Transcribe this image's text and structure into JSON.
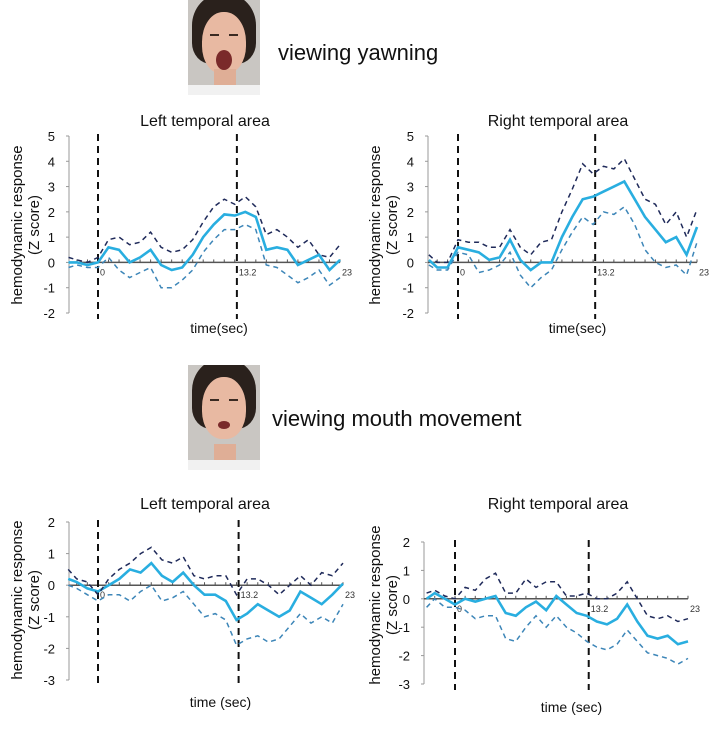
{
  "panels": [
    {
      "caption": "viewing yawning",
      "photo": "face-yawning"
    },
    {
      "caption": "viewing mouth movement",
      "photo": "face-mouth-movement"
    }
  ],
  "colors": {
    "mean": "#29aee0",
    "upper": "#1f2a5a",
    "lower": "#3d86b8",
    "event_line": "#111111"
  },
  "chart_data": [
    {
      "type": "line",
      "title": "Left temporal area",
      "ylabel": "hemodynamic response",
      "ylabel2": "(Z score)",
      "xlabel": "time(sec)",
      "ylim": [
        -2,
        5
      ],
      "yticks": [
        5,
        4,
        3,
        2,
        1,
        0,
        -1,
        -2
      ],
      "xticks": [
        0,
        13.2,
        23
      ],
      "xtick_labels": [
        "0",
        "13.2",
        "23"
      ],
      "event_lines": [
        0,
        13.2
      ],
      "x": [
        -3,
        -2,
        -1,
        0,
        1,
        2,
        3,
        4,
        5,
        6,
        7,
        8,
        9,
        10,
        11,
        12,
        13,
        14,
        15,
        16,
        17,
        18,
        19,
        20,
        21,
        22,
        23
      ],
      "series": [
        {
          "role": "mean",
          "values": [
            0,
            0,
            -0.1,
            0,
            0.6,
            0.5,
            0,
            0.2,
            0.5,
            -0.1,
            -0.3,
            -0.2,
            0.3,
            1.0,
            1.5,
            1.9,
            1.85,
            2.0,
            1.8,
            0.5,
            0.6,
            0.5,
            -0.1,
            0.1,
            0.3,
            -0.3,
            0.1
          ]
        },
        {
          "role": "upper",
          "values": [
            0.2,
            0.1,
            0,
            0.2,
            0.9,
            1.0,
            0.7,
            0.8,
            1.2,
            0.6,
            0.4,
            0.5,
            0.9,
            1.6,
            2.2,
            2.5,
            2.3,
            2.6,
            2.2,
            1.1,
            1.3,
            1.0,
            0.6,
            0.9,
            0.3,
            0.2,
            0.7
          ]
        },
        {
          "role": "lower",
          "values": [
            -0.2,
            -0.1,
            -0.2,
            -0.2,
            0.2,
            -0.3,
            -0.6,
            -0.4,
            -0.2,
            -1.0,
            -1.0,
            -0.7,
            -0.3,
            0.4,
            0.9,
            1.3,
            1.3,
            1.5,
            1.3,
            -0.1,
            -0.2,
            -0.5,
            -0.8,
            -0.6,
            -0.3,
            -0.9,
            -0.6
          ]
        }
      ]
    },
    {
      "type": "line",
      "title": "Right temporal area",
      "ylabel": "hemodynamic response",
      "ylabel2": "(Z score)",
      "xlabel": "time(sec)",
      "ylim": [
        -2,
        5
      ],
      "yticks": [
        5,
        4,
        3,
        2,
        1,
        0,
        -1,
        -2
      ],
      "xticks": [
        0,
        13.2,
        23
      ],
      "xtick_labels": [
        "0",
        "13.2",
        "23"
      ],
      "event_lines": [
        0,
        13.2
      ],
      "x": [
        -3,
        -2,
        -1,
        0,
        1,
        2,
        3,
        4,
        5,
        6,
        7,
        8,
        9,
        10,
        11,
        12,
        13,
        14,
        15,
        16,
        17,
        18,
        19,
        20,
        21,
        22,
        23
      ],
      "series": [
        {
          "role": "mean",
          "values": [
            0.1,
            -0.2,
            -0.2,
            0.6,
            0.5,
            0.4,
            0.1,
            0.2,
            0.9,
            0.1,
            -0.3,
            0,
            0,
            1.0,
            1.8,
            2.5,
            2.6,
            2.8,
            3.0,
            3.2,
            2.5,
            1.8,
            1.3,
            0.8,
            1.0,
            0.3,
            1.4
          ]
        },
        {
          "role": "upper",
          "values": [
            0.3,
            0,
            0,
            0.9,
            0.8,
            0.8,
            0.6,
            0.6,
            1.3,
            0.6,
            0.3,
            0.8,
            0.9,
            2.0,
            2.9,
            3.9,
            3.5,
            3.8,
            3.7,
            4.1,
            3.3,
            2.5,
            2.3,
            1.5,
            2.0,
            1.0,
            2.1
          ]
        },
        {
          "role": "lower",
          "values": [
            -0.1,
            -0.3,
            -0.3,
            0.4,
            0.3,
            -0.4,
            -0.3,
            -0.1,
            0.4,
            -0.5,
            -1.0,
            -0.6,
            -0.3,
            0.5,
            1.2,
            1.8,
            1.5,
            2.0,
            1.9,
            2.2,
            1.5,
            0.5,
            0,
            -0.2,
            -0.1,
            -0.5,
            0.8
          ]
        }
      ]
    },
    {
      "type": "line",
      "title": "Left temporal area",
      "ylabel": "hemodynamic response",
      "ylabel2": "(Z score)",
      "xlabel": "time (sec)",
      "ylim": [
        -3,
        2
      ],
      "yticks": [
        2,
        1,
        0,
        -1,
        -2,
        -3
      ],
      "xticks": [
        0,
        13.2,
        23
      ],
      "xtick_labels": [
        "0",
        "13.2",
        "23"
      ],
      "event_lines": [
        0,
        13.2
      ],
      "x": [
        -3,
        -2,
        -1,
        0,
        1,
        2,
        3,
        4,
        5,
        6,
        7,
        8,
        9,
        10,
        11,
        12,
        13,
        14,
        15,
        16,
        17,
        18,
        19,
        20,
        21,
        22,
        23
      ],
      "series": [
        {
          "role": "mean",
          "values": [
            0.2,
            0.1,
            -0.1,
            -0.2,
            0,
            0.2,
            0.5,
            0.4,
            0.7,
            0.3,
            0.1,
            0.4,
            0,
            -0.3,
            -0.3,
            -0.5,
            -1.1,
            -0.9,
            -0.6,
            -0.8,
            -1.0,
            -0.8,
            -0.2,
            -0.4,
            -0.6,
            -0.3,
            0.05
          ]
        },
        {
          "role": "upper",
          "values": [
            0.5,
            0.2,
            0.1,
            -0.3,
            0.2,
            0.5,
            0.7,
            1.0,
            1.2,
            0.8,
            0.7,
            0.9,
            0.3,
            0.2,
            0.3,
            0.3,
            -0.3,
            0.2,
            0.2,
            0,
            -0.3,
            0,
            0.3,
            0,
            0.4,
            0.3,
            0.7
          ]
        },
        {
          "role": "lower",
          "values": [
            0,
            -0.1,
            -0.3,
            -0.5,
            -0.3,
            -0.3,
            -0.5,
            -0.2,
            0,
            -0.5,
            -0.4,
            -0.2,
            -0.6,
            -1.0,
            -0.9,
            -1.1,
            -1.9,
            -1.7,
            -1.6,
            -1.8,
            -1.7,
            -1.3,
            -0.9,
            -1.2,
            -1.0,
            -1.2,
            -0.6
          ]
        }
      ]
    },
    {
      "type": "line",
      "title": "Right temporal area",
      "ylabel": "hemodynamic response",
      "ylabel2": "(Z score)",
      "xlabel": "time (sec)",
      "ylim": [
        -3,
        2
      ],
      "yticks": [
        2,
        1,
        0,
        -1,
        -2,
        -3
      ],
      "xticks": [
        0,
        13.2,
        23
      ],
      "xtick_labels": [
        "0",
        "13.2",
        "23"
      ],
      "event_lines": [
        0,
        13.2
      ],
      "x": [
        -3,
        -2,
        -1,
        0,
        1,
        2,
        3,
        4,
        5,
        6,
        7,
        8,
        9,
        10,
        11,
        12,
        13,
        14,
        15,
        16,
        17,
        18,
        19,
        20,
        21,
        22,
        23
      ],
      "series": [
        {
          "role": "mean",
          "values": [
            0,
            0.2,
            0,
            -0.2,
            0,
            -0.1,
            0,
            0.1,
            -0.5,
            -0.6,
            -0.3,
            -0.1,
            -0.4,
            0.1,
            -0.2,
            -0.5,
            -0.6,
            -0.8,
            -0.9,
            -0.7,
            -0.2,
            -0.8,
            -1.3,
            -1.4,
            -1.3,
            -1.6,
            -1.5
          ]
        },
        {
          "role": "upper",
          "values": [
            0.2,
            0.3,
            0.1,
            0,
            0.4,
            0.3,
            0.7,
            0.9,
            0.2,
            0.2,
            0.7,
            0.4,
            0.6,
            0.6,
            0.1,
            0.1,
            0.2,
            0,
            0,
            0.2,
            0.6,
            0,
            -0.6,
            -0.7,
            -0.6,
            -0.8,
            -0.7
          ]
        },
        {
          "role": "lower",
          "values": [
            -0.3,
            0,
            -0.3,
            -0.3,
            -0.4,
            -0.7,
            -0.6,
            -0.6,
            -1.4,
            -1.5,
            -1.0,
            -0.6,
            -1.0,
            -0.6,
            -1.0,
            -1.2,
            -1.5,
            -1.7,
            -1.8,
            -1.6,
            -1.1,
            -1.5,
            -1.9,
            -2.0,
            -2.1,
            -2.3,
            -2.1
          ]
        }
      ]
    }
  ]
}
